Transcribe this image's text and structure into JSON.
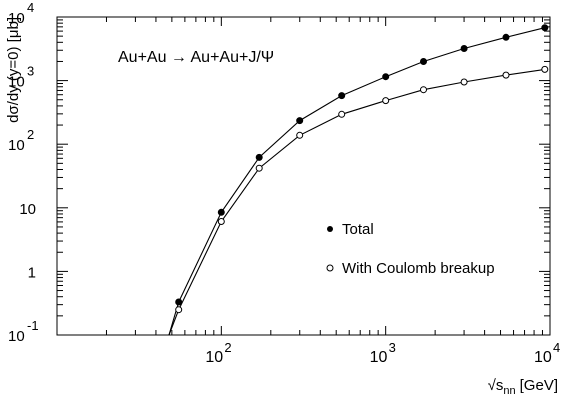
{
  "chart_data": {
    "type": "line",
    "title": "Au+Au → Au+Au+J/Ψ",
    "xlabel": "√s",
    "xlabel_sub": "nn",
    "xlabel_unit": "[GeV]",
    "ylabel": "dσ/dy (y=0) [μb]",
    "xscale": "log",
    "yscale": "log",
    "xlim": [
      10,
      10000
    ],
    "ylim": [
      0.1,
      10000
    ],
    "grid": false,
    "legend_position": "center-right",
    "x_tick_labels": [
      {
        "base": "10",
        "exp": "2"
      },
      {
        "base": "10",
        "exp": "3"
      },
      {
        "base": "10",
        "exp": "4"
      }
    ],
    "y_tick_labels": [
      {
        "base": "10",
        "exp": "-1"
      },
      {
        "base": "1",
        "exp": ""
      },
      {
        "base": "10",
        "exp": ""
      },
      {
        "base": "10",
        "exp": "2"
      },
      {
        "base": "10",
        "exp": "3"
      },
      {
        "base": "10",
        "exp": "4"
      }
    ],
    "series": [
      {
        "name": "Total",
        "marker": "filled-circle",
        "points": [
          [
            55,
            0.33
          ],
          [
            100,
            8.5
          ],
          [
            170,
            62
          ],
          [
            300,
            235
          ],
          [
            540,
            580
          ],
          [
            1000,
            1150
          ],
          [
            1700,
            2000
          ],
          [
            3000,
            3200
          ],
          [
            5400,
            4800
          ],
          [
            9300,
            6800
          ]
        ]
      },
      {
        "name": "With Coulomb breakup",
        "marker": "open-circle",
        "points": [
          [
            55,
            0.25
          ],
          [
            100,
            6.1
          ],
          [
            170,
            42
          ],
          [
            300,
            138
          ],
          [
            540,
            295
          ],
          [
            1000,
            485
          ],
          [
            1700,
            720
          ],
          [
            3000,
            950
          ],
          [
            5400,
            1220
          ],
          [
            9300,
            1500
          ]
        ]
      }
    ],
    "curve_start": [
      {
        "series": 0,
        "x": 48,
        "y": 0.1
      },
      {
        "series": 1,
        "x": 48,
        "y": 0.1
      }
    ]
  }
}
